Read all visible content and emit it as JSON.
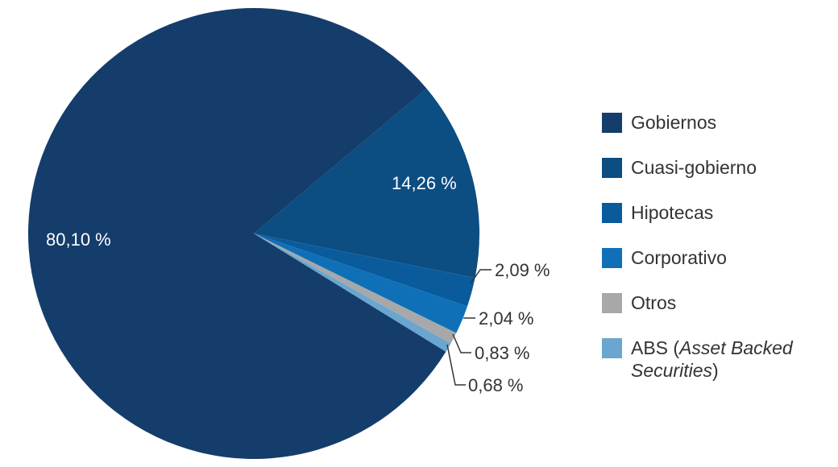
{
  "chart_data": {
    "type": "pie",
    "title": "",
    "categories": [
      "Gobiernos",
      "Cuasi-gobierno",
      "Hipotecas",
      "Corporativo",
      "Otros",
      "ABS (Asset Backed Securities)"
    ],
    "values": [
      80.1,
      14.26,
      2.09,
      2.04,
      0.83,
      0.68
    ],
    "labels": [
      "80,10 %",
      "14,26 %",
      "2,09 %",
      "2,04 %",
      "0,83 %",
      "0,68 %"
    ],
    "colors": [
      "#143d6b",
      "#0c4d82",
      "#0a5b9c",
      "#0f70b8",
      "#a6a8aa",
      "#6aa6cf"
    ],
    "legend_position": "right",
    "start_angle_deg": -40,
    "direction": "clockwise_from_cuasi"
  },
  "legend": {
    "items": [
      {
        "label": "Gobiernos",
        "color": "#143d6b"
      },
      {
        "label": "Cuasi-gobierno",
        "color": "#0c4d82"
      },
      {
        "label": "Hipotecas",
        "color": "#0a5b9c"
      },
      {
        "label": "Corporativo",
        "color": "#0f70b8"
      },
      {
        "label": "Otros",
        "color": "#a6a8aa"
      },
      {
        "label_plain": "ABS (",
        "label_italic": "Asset Backed Securities",
        "label_end": ")",
        "color": "#6aa6cf"
      }
    ]
  }
}
